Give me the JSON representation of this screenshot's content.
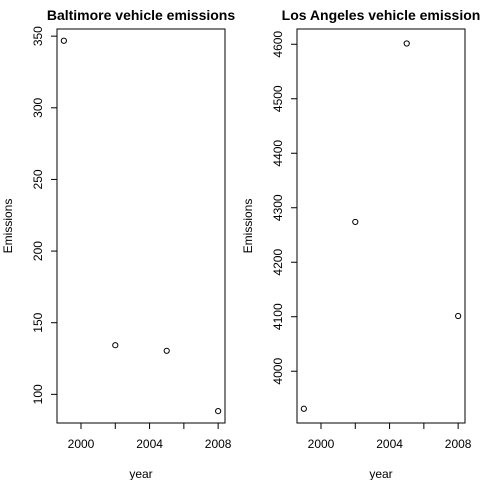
{
  "chart_data": [
    {
      "type": "scatter",
      "title": "Baltimore vehicle emissions",
      "xlabel": "year",
      "ylabel": "Emissions",
      "x": [
        1999,
        2002,
        2005,
        2008
      ],
      "y": [
        346.8,
        134.3,
        130.4,
        88.3
      ],
      "xlim": [
        1998.6,
        2008.4
      ],
      "ylim": [
        80,
        355
      ],
      "xticks": [
        2000,
        2004,
        2008
      ],
      "xminor": [
        2002,
        2006
      ],
      "yticks": [
        100,
        150,
        200,
        250,
        300,
        350
      ],
      "grid": false
    },
    {
      "type": "scatter",
      "title": "Los Angeles vehicle emission",
      "xlabel": "year",
      "ylabel": "Emissions",
      "x": [
        1999,
        2002,
        2005,
        2008
      ],
      "y": [
        3931.1,
        4274.0,
        4601.4,
        4101.3
      ],
      "xlim": [
        1998.6,
        2008.4
      ],
      "ylim": [
        3905,
        4628
      ],
      "xticks": [
        2000,
        2004,
        2008
      ],
      "xminor": [
        2002,
        2006
      ],
      "yticks": [
        4000,
        4100,
        4200,
        4300,
        4400,
        4500,
        4600
      ],
      "grid": false
    }
  ]
}
